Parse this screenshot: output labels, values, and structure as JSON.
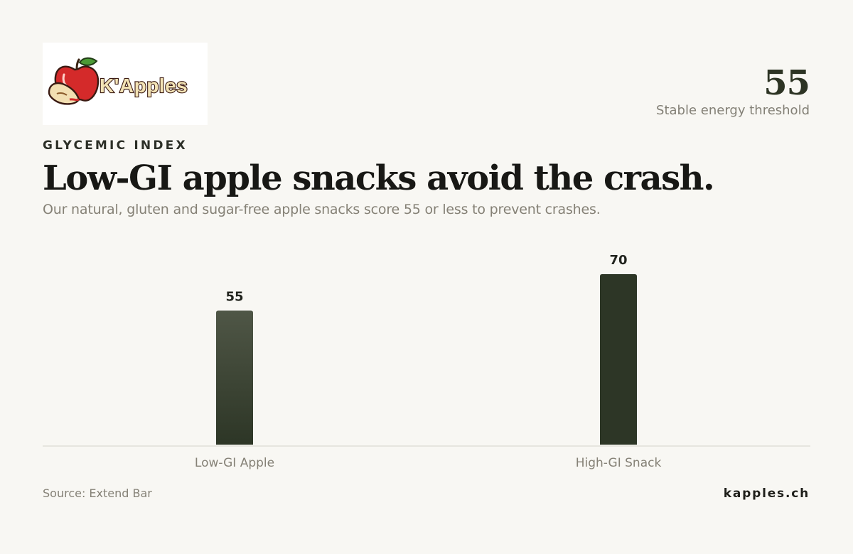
{
  "brand": {
    "logo_text": "K'Apples",
    "site": "kapples.ch"
  },
  "highlight": {
    "value": "55",
    "label": "Stable energy threshold"
  },
  "header": {
    "eyebrow": "GLYCEMIC INDEX",
    "title": "Low-GI apple snacks avoid the crash.",
    "subtitle": "Our natural, gluten and sugar-free apple snacks score 55 or less to prevent crashes."
  },
  "footer": {
    "source": "Source: Extend Bar"
  },
  "colors": {
    "background": "#f8f7f3",
    "bar_light": "#4f5646",
    "bar_dark": "#2d3626",
    "baseline": "#dcdad3"
  },
  "chart_data": {
    "type": "bar",
    "categories": [
      "Low-GI Apple",
      "High-GI Snack"
    ],
    "values": [
      55,
      70
    ],
    "data_labels": [
      "55",
      "70"
    ],
    "title": "",
    "xlabel": "",
    "ylabel": "",
    "ylim": [
      0,
      70
    ],
    "grid": false,
    "legend": "none"
  }
}
